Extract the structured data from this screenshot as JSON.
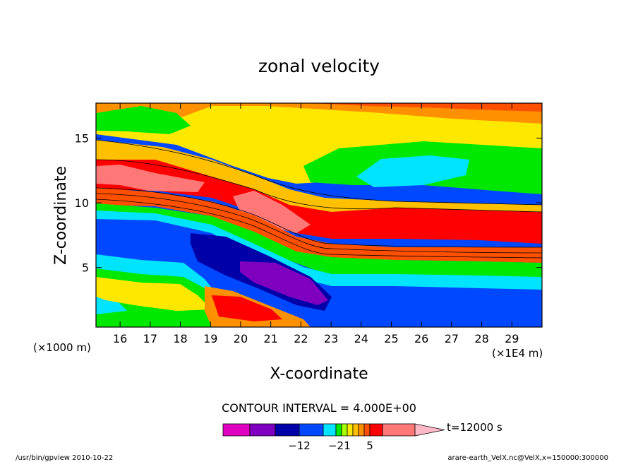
{
  "chart_data": {
    "type": "heatmap",
    "title": "zonal velocity",
    "xlabel": "X-coordinate",
    "ylabel": "Z-coordinate",
    "x_unit_left": "(×1000 m)",
    "x_unit_right": "(×1E4 m)",
    "xlim": [
      15.2,
      30.0
    ],
    "ylim": [
      0.4,
      17.7
    ],
    "x_ticks": [
      "16",
      "17",
      "18",
      "19",
      "20",
      "21",
      "22",
      "23",
      "24",
      "25",
      "26",
      "27",
      "28",
      "29"
    ],
    "y_ticks": [
      "5",
      "10",
      "15"
    ],
    "contour_interval_label": "CONTOUR INTERVAL = 4.000E+00",
    "time_label": "t=12000 s",
    "colorbar": {
      "colors": [
        "#e000c0",
        "#8000c0",
        "#0000a8",
        "#0048ff",
        "#00e4ff",
        "#00e800",
        "#a8ff00",
        "#ffe800",
        "#ffc000",
        "#ff9000",
        "#ff5000",
        "#ff0000",
        "#ff7878",
        "#ffb8c8"
      ],
      "tick_labels": [
        "−12",
        "−2",
        "1",
        "5"
      ]
    },
    "footer_left": "/usr/bin/gpview   2010-10-22",
    "footer_right": "arare-earth_VelX.nc@VelX,x=150000:300000"
  }
}
